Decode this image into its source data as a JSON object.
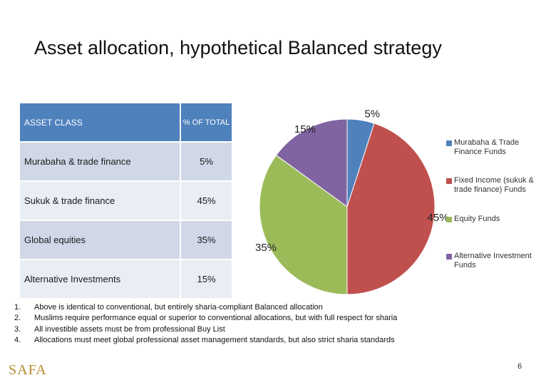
{
  "title": "Asset allocation, hypothetical Balanced strategy",
  "table": {
    "headers": [
      "ASSET CLASS",
      "% OF TOTAL"
    ],
    "rows": [
      [
        "Murabaha & trade finance",
        "5%"
      ],
      [
        "Sukuk & trade finance",
        "45%"
      ],
      [
        "Global equities",
        "35%"
      ],
      [
        "Alternative Investments",
        "15%"
      ]
    ]
  },
  "chart_data": {
    "type": "pie",
    "slices": [
      {
        "label": "Murabaha & Trade Finance Funds",
        "value": 5,
        "value_label": "5%",
        "color": "#4f81bd"
      },
      {
        "label": "Fixed Income (sukuk & trade finance) Funds",
        "value": 45,
        "value_label": "45%",
        "color": "#c0504d"
      },
      {
        "label": "Equity Funds",
        "value": 35,
        "value_label": "35%",
        "color": "#9bbb59"
      },
      {
        "label": "Alternative Investment Funds",
        "value": 15,
        "value_label": "15%",
        "color": "#8064a2"
      }
    ],
    "legend_position": "right"
  },
  "notes": [
    {
      "num": "1.",
      "text": "Above is identical to conventional, but entirely sharia-compliant Balanced allocation"
    },
    {
      "num": "2.",
      "text": "Muslims require performance equal or superior to conventional allocations, but with full respect for sharia"
    },
    {
      "num": "3.",
      "text": "All investible assets must be from professional Buy List"
    },
    {
      "num": "4.",
      "text": "Allocations must meet global professional asset management standards, but also strict sharia standards"
    }
  ],
  "logo": "SAFA",
  "page_number": "6"
}
